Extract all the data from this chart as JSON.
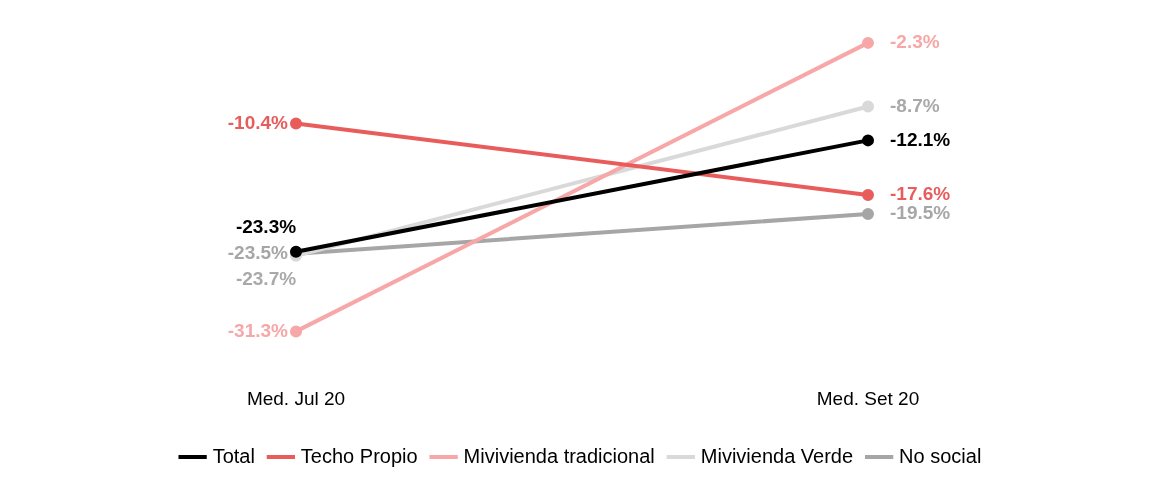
{
  "chart_data": {
    "type": "line",
    "categories": [
      "Med. Jul 20",
      "Med. Set 20"
    ],
    "series": [
      {
        "name": "Total",
        "color": "#000000",
        "values": [
          -23.3,
          -12.1
        ],
        "value_labels": [
          "-23.3%",
          "-12.1%"
        ]
      },
      {
        "name": "Techo Propio",
        "color": "#e85c5c",
        "values": [
          -10.4,
          -17.6
        ],
        "value_labels": [
          "-10.4%",
          "-17.6%"
        ]
      },
      {
        "name": "Mivivienda tradicional",
        "color": "#f7a7a7",
        "values": [
          -31.3,
          -2.3
        ],
        "value_labels": [
          "-31.3%",
          "-2.3%"
        ]
      },
      {
        "name": "Mivivienda Verde",
        "color": "#d9d9d9",
        "values": [
          -23.7,
          -8.7
        ],
        "value_labels": [
          "-23.7%",
          "-8.7%"
        ]
      },
      {
        "name": "No social",
        "color": "#a6a6a6",
        "values": [
          -23.5,
          -19.5
        ],
        "value_labels": [
          "-23.5%",
          "-19.5%"
        ]
      }
    ],
    "marker": "circle",
    "line_style": "solid",
    "grid": false,
    "legend": "bottom",
    "tick_labels": "x"
  }
}
